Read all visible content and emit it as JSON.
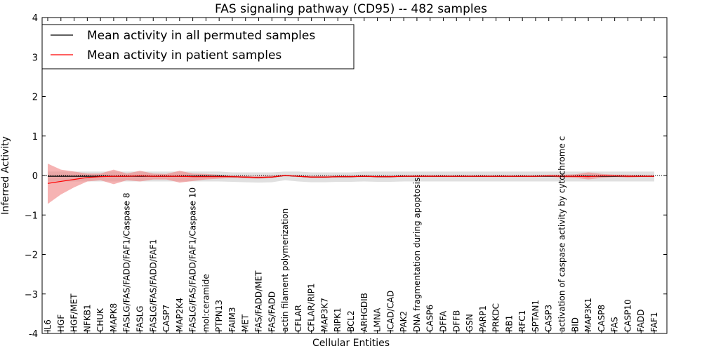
{
  "chart_data": {
    "type": "line",
    "title": "FAS signaling pathway (CD95) -- 482 samples",
    "xlabel": "Cellular Entities",
    "ylabel": "Inferred Activity",
    "ylim": [
      -4,
      4
    ],
    "yticks": [
      "-4",
      "−3",
      "−2",
      "−1",
      "0",
      "1",
      "2",
      "3",
      "4"
    ],
    "grid": false,
    "legend_position": "top-left",
    "categories": [
      "IL6",
      "HGF",
      "HGF/MET",
      "NFKB1",
      "CHUK",
      "MAPK8",
      "FASLG/FAS/FADD/FAF1/Caspase 8",
      "FASLG",
      "FASLG/FAS/FADD/FAF1",
      "CASP7",
      "MAP2K4",
      "FASLG/FAS/FADD/FAF1/Caspase 10",
      "mol:ceramide",
      "PTPN13",
      "FAIM3",
      "MET",
      "FAS/FADD/MET",
      "FAS/FADD",
      "actin filament polymerization",
      "CFLAR",
      "CFLAR/RIP1",
      "MAP3K7",
      "RIPK1",
      "BCL2",
      "ARHGDIB",
      "LMNA",
      "ICAD/CAD",
      "PAK2",
      "DNA fragmentation during apoptosis",
      "CASP6",
      "DFFA",
      "DFFB",
      "GSN",
      "PARP1",
      "PRKDC",
      "RB1",
      "RFC1",
      "SPTAN1",
      "CASP3",
      "activation of caspase activity by cytochrome c",
      "BID",
      "MAP3K1",
      "CASP8",
      "FAS",
      "CASP10",
      "FADD",
      "FAF1"
    ],
    "series": [
      {
        "name": "Mean activity in all permuted samples",
        "color": "#000000",
        "band_color": "#bbbbbb",
        "values": [
          -0.02,
          -0.02,
          -0.02,
          -0.02,
          -0.02,
          -0.02,
          -0.02,
          -0.02,
          -0.02,
          -0.02,
          -0.02,
          -0.02,
          -0.02,
          -0.02,
          -0.03,
          -0.04,
          -0.05,
          -0.04,
          0.0,
          -0.02,
          -0.04,
          -0.04,
          -0.03,
          -0.03,
          -0.02,
          -0.03,
          -0.03,
          -0.02,
          -0.02,
          -0.02,
          -0.02,
          -0.02,
          -0.02,
          -0.02,
          -0.02,
          -0.02,
          -0.02,
          -0.02,
          -0.02,
          -0.02,
          -0.02,
          -0.02,
          -0.02,
          -0.02,
          -0.02,
          -0.02,
          -0.02
        ],
        "upper": [
          0.1,
          0.1,
          0.1,
          0.1,
          0.1,
          0.1,
          0.1,
          0.1,
          0.1,
          0.1,
          0.1,
          0.1,
          0.1,
          0.1,
          0.08,
          0.08,
          0.08,
          0.08,
          0.1,
          0.1,
          0.08,
          0.08,
          0.08,
          0.08,
          0.1,
          0.1,
          0.1,
          0.1,
          0.1,
          0.1,
          0.1,
          0.1,
          0.1,
          0.1,
          0.1,
          0.1,
          0.1,
          0.1,
          0.1,
          0.1,
          0.1,
          0.1,
          0.1,
          0.1,
          0.1,
          0.1,
          0.1
        ],
        "lower": [
          -0.15,
          -0.15,
          -0.15,
          -0.15,
          -0.15,
          -0.15,
          -0.15,
          -0.15,
          -0.15,
          -0.15,
          -0.15,
          -0.15,
          -0.15,
          -0.15,
          -0.16,
          -0.17,
          -0.18,
          -0.17,
          -0.12,
          -0.15,
          -0.17,
          -0.17,
          -0.16,
          -0.16,
          -0.15,
          -0.16,
          -0.16,
          -0.15,
          -0.15,
          -0.15,
          -0.15,
          -0.15,
          -0.15,
          -0.15,
          -0.15,
          -0.15,
          -0.15,
          -0.15,
          -0.15,
          -0.15,
          -0.15,
          -0.15,
          -0.15,
          -0.15,
          -0.15,
          -0.15,
          -0.15
        ]
      },
      {
        "name": "Mean activity in patient samples",
        "color": "#ff0000",
        "band_color": "#f08080",
        "values": [
          -0.2,
          -0.15,
          -0.1,
          -0.05,
          -0.03,
          -0.02,
          -0.02,
          -0.01,
          -0.02,
          -0.02,
          -0.02,
          -0.03,
          -0.03,
          -0.03,
          -0.03,
          -0.04,
          -0.05,
          -0.04,
          0.0,
          -0.02,
          -0.04,
          -0.04,
          -0.03,
          -0.03,
          -0.02,
          -0.03,
          -0.03,
          -0.02,
          -0.02,
          -0.02,
          -0.02,
          -0.02,
          -0.02,
          -0.02,
          -0.02,
          -0.02,
          -0.02,
          -0.02,
          -0.01,
          -0.02,
          -0.02,
          -0.03,
          -0.01,
          -0.01,
          -0.02,
          -0.02,
          -0.02
        ],
        "upper": [
          0.3,
          0.15,
          0.1,
          0.05,
          0.05,
          0.15,
          0.05,
          0.12,
          0.05,
          0.04,
          0.12,
          0.05,
          0.04,
          0.02,
          0.0,
          -0.01,
          -0.01,
          0.0,
          0.02,
          0.0,
          -0.01,
          -0.01,
          0.0,
          0.0,
          0.0,
          0.0,
          0.0,
          0.0,
          0.01,
          0.01,
          0.0,
          0.0,
          0.0,
          0.0,
          0.0,
          0.0,
          0.0,
          0.0,
          0.02,
          0.02,
          0.03,
          0.08,
          0.04,
          0.02,
          0.02,
          0.01,
          0.01
        ],
        "lower": [
          -0.72,
          -0.48,
          -0.3,
          -0.15,
          -0.12,
          -0.22,
          -0.12,
          -0.15,
          -0.1,
          -0.1,
          -0.18,
          -0.14,
          -0.1,
          -0.08,
          -0.06,
          -0.07,
          -0.08,
          -0.06,
          -0.02,
          -0.04,
          -0.06,
          -0.06,
          -0.05,
          -0.05,
          -0.04,
          -0.05,
          -0.05,
          -0.04,
          -0.04,
          -0.04,
          -0.04,
          -0.04,
          -0.04,
          -0.04,
          -0.04,
          -0.04,
          -0.04,
          -0.04,
          -0.03,
          -0.05,
          -0.06,
          -0.1,
          -0.06,
          -0.04,
          -0.05,
          -0.04,
          -0.04
        ]
      }
    ]
  }
}
